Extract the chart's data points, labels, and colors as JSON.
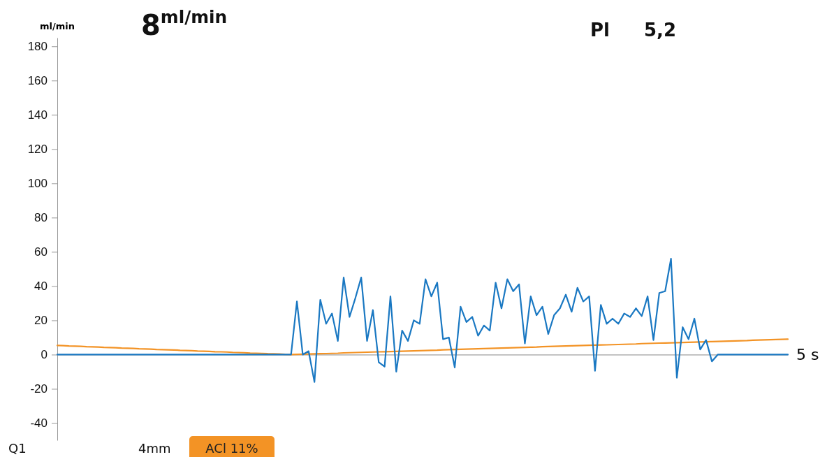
{
  "chart_data": {
    "type": "line",
    "ylabel": "ml/min",
    "xlabel": "5 s",
    "categories": [
      null,
      null,
      null,
      null,
      null,
      null,
      null,
      null,
      null,
      null,
      null,
      null,
      null,
      null,
      null,
      null,
      null,
      null,
      null,
      null,
      null,
      null,
      null,
      null,
      null,
      null,
      null,
      null,
      null,
      null,
      null,
      null,
      null,
      null,
      null,
      null,
      null,
      null,
      null,
      null,
      null,
      null,
      null,
      null,
      null,
      null,
      null,
      null,
      null,
      null,
      null,
      null,
      null,
      null,
      null,
      null,
      null,
      null,
      null,
      null,
      null,
      null,
      null,
      null,
      null,
      null,
      null,
      null,
      null,
      null,
      null,
      null,
      null,
      null,
      null,
      null,
      null,
      null,
      null,
      null,
      null,
      null,
      null,
      null,
      null,
      null,
      null,
      null,
      null,
      null,
      null,
      null,
      null,
      null,
      null,
      null,
      null,
      null,
      null,
      null,
      null,
      null,
      null,
      null,
      null,
      null,
      null,
      null,
      null,
      null,
      null,
      null,
      null,
      null,
      null,
      null,
      null,
      null,
      null,
      null,
      null,
      null,
      null,
      null,
      null,
      null
    ],
    "ylim": [
      -50,
      185
    ],
    "yticks": [
      -40,
      -20,
      0,
      20,
      40,
      60,
      80,
      100,
      120,
      140,
      160,
      180
    ],
    "marker": "none",
    "line_style": "solid",
    "series": [
      {
        "color": "#f39325",
        "values": [
          5.3,
          5.2,
          5.0,
          4.9,
          4.8,
          4.6,
          4.5,
          4.4,
          4.2,
          4.1,
          4.0,
          3.8,
          3.7,
          3.6,
          3.4,
          3.3,
          3.2,
          3.0,
          2.9,
          2.8,
          2.7,
          2.5,
          2.4,
          2.3,
          2.1,
          2.0,
          1.9,
          1.7,
          1.6,
          1.5,
          1.3,
          1.2,
          1.1,
          0.9,
          0.8,
          0.7,
          0.5,
          0.4,
          0.3,
          0.1,
          0,
          0.1,
          0.2,
          0.3,
          0.4,
          0.5,
          0.6,
          0.7,
          0.8,
          1.0,
          1.1,
          1.2,
          1.3,
          1.4,
          1.5,
          1.6,
          1.7,
          1.8,
          1.9,
          2.0,
          2.1,
          2.2,
          2.3,
          2.4,
          2.5,
          2.6,
          2.8,
          2.9,
          3.0,
          3.1,
          3.2,
          3.3,
          3.4,
          3.5,
          3.6,
          3.7,
          3.8,
          3.9,
          4.0,
          4.1,
          4.2,
          4.3,
          4.4,
          4.6,
          4.7,
          4.8,
          4.9,
          5.0,
          5.1,
          5.2,
          5.3,
          5.4,
          5.5,
          5.6,
          5.7,
          5.8,
          5.9,
          6.0,
          6.1,
          6.2,
          6.4,
          6.5,
          6.6,
          6.7,
          6.8,
          6.9,
          7.0,
          7.1,
          7.2,
          7.3,
          7.4,
          7.5,
          7.6,
          7.7,
          7.8,
          7.9,
          8.0,
          8.1,
          8.2,
          8.4,
          8.5,
          8.6,
          8.7,
          8.8,
          8.9,
          9.0
        ]
      },
      {
        "color": "#1a78c2",
        "values": [
          0,
          0,
          0,
          0,
          0,
          0,
          0,
          0,
          0,
          0,
          0,
          0,
          0,
          0,
          0,
          0,
          0,
          0,
          0,
          0,
          0,
          0,
          0,
          0,
          0,
          0,
          0,
          0,
          0,
          0,
          0,
          0,
          0,
          0,
          0,
          0,
          0,
          0,
          0,
          0,
          0,
          31,
          0,
          2,
          -16,
          32,
          18,
          24,
          8,
          45,
          22,
          33,
          45,
          8,
          26,
          -4.5,
          -7,
          34,
          -10,
          14,
          8,
          20,
          18,
          44,
          34,
          42,
          9,
          10,
          -7.5,
          28,
          19,
          22,
          11,
          17,
          14,
          42,
          27,
          44,
          37,
          41,
          6.5,
          34,
          23,
          28,
          12,
          23,
          27,
          35,
          25,
          39,
          31,
          34,
          -9.5,
          29,
          18,
          21,
          18,
          24,
          22,
          27,
          22.5,
          34,
          8.5,
          36,
          37,
          56,
          -13.5,
          16,
          9,
          21,
          3,
          8.5,
          -4,
          0,
          0,
          0,
          0,
          0,
          0,
          0,
          0,
          0,
          0,
          0,
          0,
          0
        ]
      }
    ],
    "annotations": [
      "8$^{ml/min}$",
      "Pl",
      "5,2",
      "Q1",
      "4mm",
      "ACl 11%"
    ]
  }
}
